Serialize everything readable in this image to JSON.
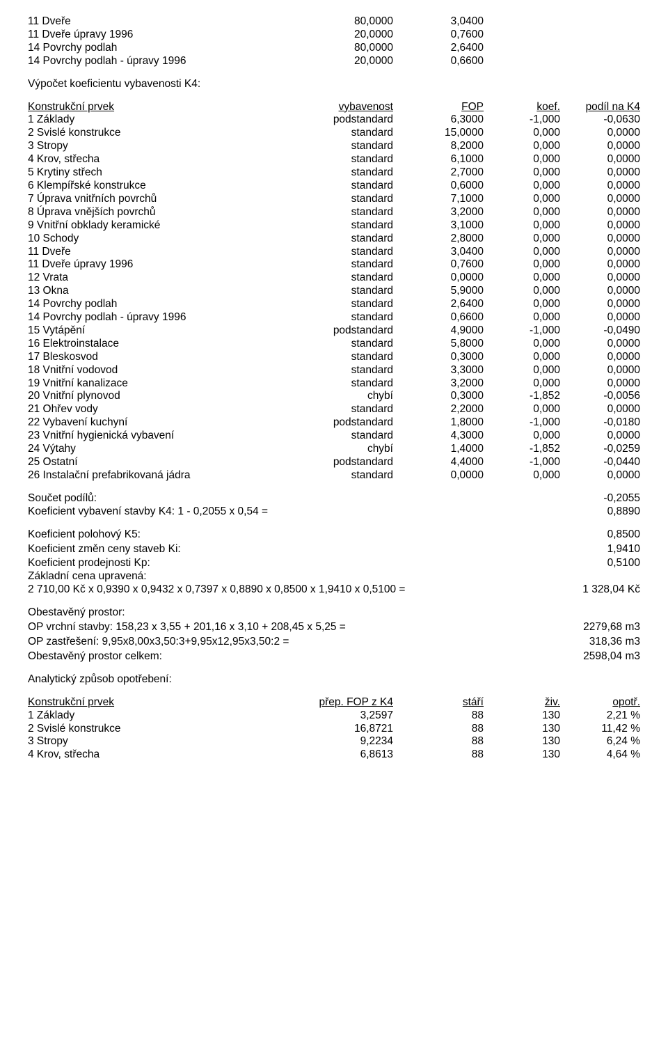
{
  "intro_rows": [
    {
      "a": "11 Dveře",
      "b": "80,0000",
      "c": "3,0400"
    },
    {
      "a": "11 Dveře úpravy 1996",
      "b": "20,0000",
      "c": "0,7600"
    },
    {
      "a": "14 Povrchy podlah",
      "b": "80,0000",
      "c": "2,6400"
    },
    {
      "a": "14 Povrchy podlah - úpravy 1996",
      "b": "20,0000",
      "c": "0,6600"
    }
  ],
  "k4_title": "Výpočet koeficientu vybavenosti K4:",
  "k4_head": {
    "c1": "Konstrukční prvek",
    "c2": "vybavenost",
    "c3": "FOP",
    "c4": "koef.",
    "c5": "podíl na K4"
  },
  "k4_rows": [
    {
      "a": "1 Základy",
      "b": "podstandard",
      "c": "6,3000",
      "d": "-1,000",
      "e": "-0,0630"
    },
    {
      "a": "2 Svislé konstrukce",
      "b": "standard",
      "c": "15,0000",
      "d": "0,000",
      "e": "0,0000"
    },
    {
      "a": "3 Stropy",
      "b": "standard",
      "c": "8,2000",
      "d": "0,000",
      "e": "0,0000"
    },
    {
      "a": "4 Krov, střecha",
      "b": "standard",
      "c": "6,1000",
      "d": "0,000",
      "e": "0,0000"
    },
    {
      "a": "5 Krytiny střech",
      "b": "standard",
      "c": "2,7000",
      "d": "0,000",
      "e": "0,0000"
    },
    {
      "a": "6 Klempířské konstrukce",
      "b": "standard",
      "c": "0,6000",
      "d": "0,000",
      "e": "0,0000"
    },
    {
      "a": "7 Úprava vnitřních povrchů",
      "b": "standard",
      "c": "7,1000",
      "d": "0,000",
      "e": "0,0000"
    },
    {
      "a": "8 Úprava vnějších povrchů",
      "b": "standard",
      "c": "3,2000",
      "d": "0,000",
      "e": "0,0000"
    },
    {
      "a": "9 Vnitřní obklady keramické",
      "b": "standard",
      "c": "3,1000",
      "d": "0,000",
      "e": "0,0000"
    },
    {
      "a": "10 Schody",
      "b": "standard",
      "c": "2,8000",
      "d": "0,000",
      "e": "0,0000"
    },
    {
      "a": "11 Dveře",
      "b": "standard",
      "c": "3,0400",
      "d": "0,000",
      "e": "0,0000"
    },
    {
      "a": "11 Dveře úpravy 1996",
      "b": "standard",
      "c": "0,7600",
      "d": "0,000",
      "e": "0,0000"
    },
    {
      "a": "12 Vrata",
      "b": "standard",
      "c": "0,0000",
      "d": "0,000",
      "e": "0,0000"
    },
    {
      "a": "13 Okna",
      "b": "standard",
      "c": "5,9000",
      "d": "0,000",
      "e": "0,0000"
    },
    {
      "a": "14 Povrchy podlah",
      "b": "standard",
      "c": "2,6400",
      "d": "0,000",
      "e": "0,0000"
    },
    {
      "a": "14 Povrchy podlah - úpravy 1996",
      "b": "standard",
      "c": "0,6600",
      "d": "0,000",
      "e": "0,0000"
    },
    {
      "a": "15 Vytápění",
      "b": "podstandard",
      "c": "4,9000",
      "d": "-1,000",
      "e": "-0,0490"
    },
    {
      "a": "16 Elektroinstalace",
      "b": "standard",
      "c": "5,8000",
      "d": "0,000",
      "e": "0,0000"
    },
    {
      "a": "17 Bleskosvod",
      "b": "standard",
      "c": "0,3000",
      "d": "0,000",
      "e": "0,0000"
    },
    {
      "a": "18 Vnitřní vodovod",
      "b": "standard",
      "c": "3,3000",
      "d": "0,000",
      "e": "0,0000"
    },
    {
      "a": "19 Vnitřní kanalizace",
      "b": "standard",
      "c": "3,2000",
      "d": "0,000",
      "e": "0,0000"
    },
    {
      "a": "20 Vnitřní plynovod",
      "b": "chybí",
      "c": "0,3000",
      "d": "-1,852",
      "e": "-0,0056"
    },
    {
      "a": "21 Ohřev vody",
      "b": "standard",
      "c": "2,2000",
      "d": "0,000",
      "e": "0,0000"
    },
    {
      "a": "22 Vybavení kuchyní",
      "b": "podstandard",
      "c": "1,8000",
      "d": "-1,000",
      "e": "-0,0180"
    },
    {
      "a": "23 Vnitřní hygienická vybavení",
      "b": "standard",
      "c": "4,3000",
      "d": "0,000",
      "e": "0,0000"
    },
    {
      "a": "24 Výtahy",
      "b": "chybí",
      "c": "1,4000",
      "d": "-1,852",
      "e": "-0,0259"
    },
    {
      "a": "25 Ostatní",
      "b": "podstandard",
      "c": "4,4000",
      "d": "-1,000",
      "e": "-0,0440"
    },
    {
      "a": "26 Instalační prefabrikovaná jádra",
      "b": "standard",
      "c": "0,0000",
      "d": "0,000",
      "e": "0,0000"
    }
  ],
  "sum_label": "Součet podílů:",
  "sum_val": "-0,2055",
  "k4_coef_label": "Koeficient vybavení stavby K4: 1 - 0,2055 x 0,54 =",
  "k4_coef_val": "0,8890",
  "k5_label": "Koeficient polohový K5:",
  "k5_val": "0,8500",
  "ki_label": "Koeficient změn ceny staveb Ki:",
  "ki_val": "1,9410",
  "kp_label": "Koeficient prodejnosti Kp:",
  "kp_val": "0,5100",
  "zcu_label": "Základní cena upravená:",
  "zcu_expr": "2 710,00 Kč x 0,9390 x 0,9432 x 0,7397 x 0,8890 x 0,8500 x 1,9410 x 0,5100 =",
  "zcu_val": "1 328,04 Kč",
  "op_title": "Obestavěný prostor:",
  "op1_label": "OP vrchní stavby: 158,23 x 3,55 + 201,16 x 3,10 + 208,45 x 5,25 =",
  "op1_val": "2279,68 m3",
  "op2_label": "OP zastřešení: 9,95x8,00x3,50:3+9,95x12,95x3,50:2 =",
  "op2_val": "318,36 m3",
  "op3_label": "Obestavěný prostor celkem:",
  "op3_val": "2598,04 m3",
  "wear_title": "Analytický způsob opotřebení:",
  "wear_head": {
    "c1": "Konstrukční prvek",
    "c2": "přep. FOP z K4",
    "c3": "stáří",
    "c4": "živ.",
    "c5": "opotř."
  },
  "wear_rows": [
    {
      "a": "1 Základy",
      "b": "3,2597",
      "c": "88",
      "d": "130",
      "e": "2,21 %"
    },
    {
      "a": "2 Svislé konstrukce",
      "b": "16,8721",
      "c": "88",
      "d": "130",
      "e": "11,42 %"
    },
    {
      "a": "3 Stropy",
      "b": "9,2234",
      "c": "88",
      "d": "130",
      "e": "6,24 %"
    },
    {
      "a": "4 Krov, střecha",
      "b": "6,8613",
      "c": "88",
      "d": "130",
      "e": "4,64 %"
    }
  ]
}
